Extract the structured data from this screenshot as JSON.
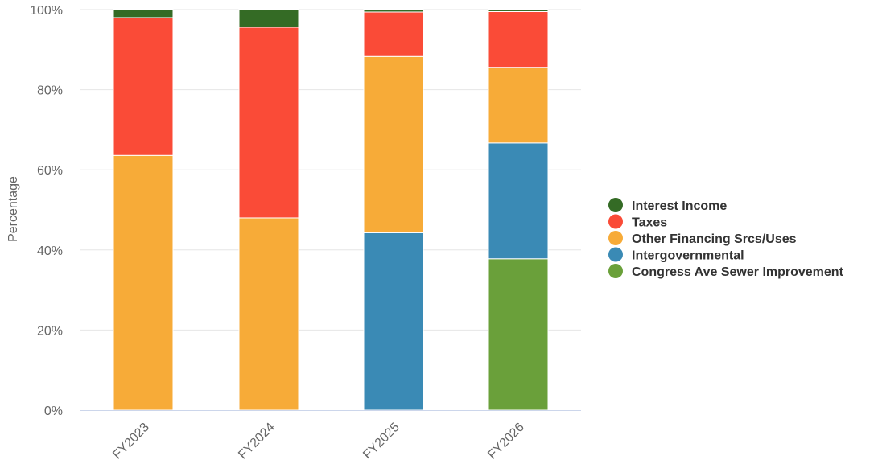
{
  "chart_data": {
    "type": "bar",
    "stacked": true,
    "normalized_percent": true,
    "categories": [
      "FY2023",
      "FY2024",
      "FY2025",
      "FY2026"
    ],
    "ylabel": "Percentage",
    "ylim": [
      0,
      100
    ],
    "yticks": [
      "0%",
      "20%",
      "40%",
      "60%",
      "80%",
      "100%"
    ],
    "grid": true,
    "legend_position": "right",
    "series": [
      {
        "name": "Congress Ave Sewer Improvement",
        "color": "#6aa03a",
        "values": [
          0,
          0,
          0,
          37.8
        ]
      },
      {
        "name": "Intergovernmental",
        "color": "#3a8ab5",
        "values": [
          0,
          0,
          44.3,
          28.9
        ]
      },
      {
        "name": "Other Financing Srcs/Uses",
        "color": "#f7ab38",
        "values": [
          63.6,
          48.0,
          44.0,
          18.9
        ]
      },
      {
        "name": "Taxes",
        "color": "#fa4b37",
        "values": [
          34.4,
          47.6,
          11.1,
          13.9
        ]
      },
      {
        "name": "Interest Income",
        "color": "#346b25",
        "values": [
          2.0,
          4.4,
          0.6,
          0.5
        ]
      }
    ],
    "legend_order": [
      "Interest Income",
      "Taxes",
      "Other Financing Srcs/Uses",
      "Intergovernmental",
      "Congress Ave Sewer Improvement"
    ]
  }
}
